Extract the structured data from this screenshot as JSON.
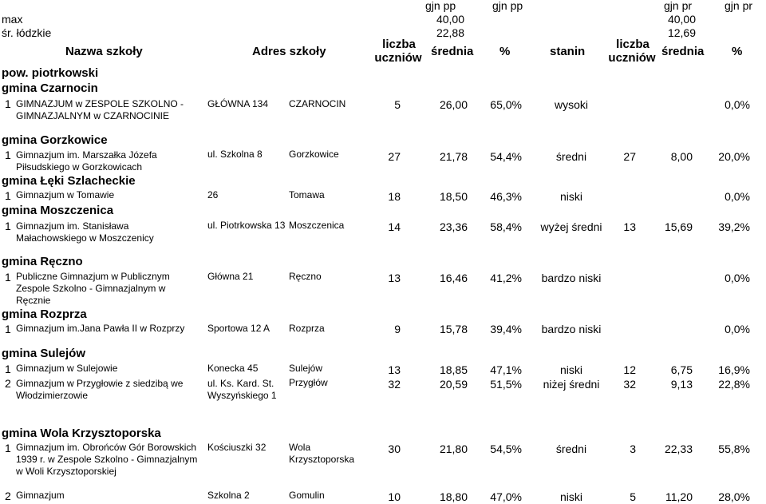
{
  "top": {
    "gjn1": "gjn pp",
    "gjn2": "gjn pp",
    "gjn3": "gjn pr",
    "gjn4": "gjn pr",
    "max_label": "max",
    "max_srednia": "40,00",
    "max_srednia_pr": "40,00",
    "sr_label": "śr. łódzkie",
    "sr_srednia": "22,88",
    "sr_srednia_pr": "12,69"
  },
  "header": {
    "nazwa": "Nazwa szkoły",
    "adres": "Adres szkoły",
    "liczba1": "liczba",
    "uczniow1": "uczniów",
    "srednia1": "średnia",
    "pct1": "%",
    "stanin": "stanin",
    "liczba2": "liczba",
    "uczniow2": "uczniów",
    "srednia2": "średnia",
    "pct2": "%"
  },
  "pow": "pow. piotrkowski",
  "gminy": [
    {
      "name": "gmina Czarnocin",
      "rows": [
        {
          "lp": "1",
          "school": "GIMNAZJUM w ZESPOLE SZKOLNO - GIMNAZJALNYM w CZARNOCINIE",
          "street": "GŁÓWNA 134",
          "city": "CZARNOCIN",
          "n": "5",
          "avg": "26,00",
          "pct": "65,0%",
          "stanin": "wysoki",
          "n2": "",
          "avg2": "",
          "pct2": "0,0%"
        }
      ]
    },
    {
      "name": "gmina Gorzkowice",
      "rows": [
        {
          "lp": "1",
          "school": "Gimnazjum im. Marszałka Józefa Piłsudskiego w Gorzkowicach",
          "street": "ul. Szkolna 8",
          "city": "Gorzkowice",
          "n": "27",
          "avg": "21,78",
          "pct": "54,4%",
          "stanin": "średni",
          "n2": "27",
          "avg2": "8,00",
          "pct2": "20,0%"
        }
      ]
    },
    {
      "name": "gmina Łęki Szlacheckie",
      "rows": [
        {
          "lp": "1",
          "school": "Gimnazjum w Tomawie",
          "street": "26",
          "city": "Tomawa",
          "n": "18",
          "avg": "18,50",
          "pct": "46,3%",
          "stanin": "niski",
          "n2": "",
          "avg2": "",
          "pct2": "0,0%"
        }
      ]
    },
    {
      "name": "gmina Moszczenica",
      "rows": [
        {
          "lp": "1",
          "school": "Gimnazjum im. Stanisława Małachowskiego w Moszczenicy",
          "street": "ul. Piotrkowska 13",
          "city": "Moszczenica",
          "n": "14",
          "avg": "23,36",
          "pct": "58,4%",
          "stanin": "wyżej średni",
          "n2": "13",
          "avg2": "15,69",
          "pct2": "39,2%"
        }
      ]
    },
    {
      "name": "gmina Ręczno",
      "rows": [
        {
          "lp": "1",
          "school": "Publiczne Gimnazjum w Publicznym Zespole Szkolno - Gimnazjalnym w Ręcznie",
          "street": "Główna 21",
          "city": "Ręczno",
          "n": "13",
          "avg": "16,46",
          "pct": "41,2%",
          "stanin": "bardzo niski",
          "n2": "",
          "avg2": "",
          "pct2": "0,0%"
        }
      ]
    },
    {
      "name": "gmina Rozprza",
      "rows": [
        {
          "lp": "1",
          "school": "Gimnazjum im.Jana Pawła II w Rozprzy",
          "street": "Sportowa 12 A",
          "city": "Rozprza",
          "n": "9",
          "avg": "15,78",
          "pct": "39,4%",
          "stanin": "bardzo niski",
          "n2": "",
          "avg2": "",
          "pct2": "0,0%"
        }
      ]
    },
    {
      "name": "gmina Sulejów",
      "rows": [
        {
          "lp": "1",
          "school": "Gimnazjum w Sulejowie",
          "street": "Konecka 45",
          "city": "Sulejów",
          "n": "13",
          "avg": "18,85",
          "pct": "47,1%",
          "stanin": "niski",
          "n2": "12",
          "avg2": "6,75",
          "pct2": "16,9%"
        },
        {
          "lp": "2",
          "school": "Gimnazjum w Przygłowie z siedzibą we Włodzimierzowie",
          "street": "ul. Ks. Kard. St. Wyszyńskiego 1",
          "city": "Przygłów",
          "n": "32",
          "avg": "20,59",
          "pct": "51,5%",
          "stanin": "niżej średni",
          "n2": "32",
          "avg2": "9,13",
          "pct2": "22,8%"
        }
      ]
    },
    {
      "name": "gmina Wola Krzysztoporska",
      "rows": [
        {
          "lp": "1",
          "school": "Gimnazjum im. Obrońców Gór Borowskich 1939 r. w Zespole Szkolno - Gimnazjalnym w Woli Krzysztoporskiej",
          "street": "Kościuszki 32",
          "city": "Wola Krzysztoporska",
          "n": "30",
          "avg": "21,80",
          "pct": "54,5%",
          "stanin": "średni",
          "n2": "3",
          "avg2": "22,33",
          "pct2": "55,8%"
        },
        {
          "lp": "2",
          "school": "Gimnazjum",
          "street": "Szkolna 2",
          "city": "Gomulin",
          "n": "10",
          "avg": "18,80",
          "pct": "47,0%",
          "stanin": "niski",
          "n2": "5",
          "avg2": "11,20",
          "pct2": "28,0%"
        }
      ]
    }
  ]
}
